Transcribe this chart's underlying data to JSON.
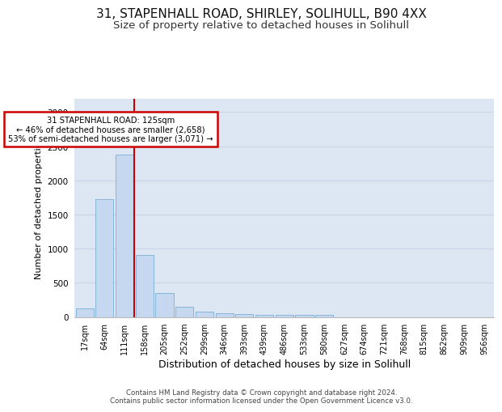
{
  "title1": "31, STAPENHALL ROAD, SHIRLEY, SOLIHULL, B90 4XX",
  "title2": "Size of property relative to detached houses in Solihull",
  "xlabel": "Distribution of detached houses by size in Solihull",
  "ylabel": "Number of detached properties",
  "categories": [
    "17sqm",
    "64sqm",
    "111sqm",
    "158sqm",
    "205sqm",
    "252sqm",
    "299sqm",
    "346sqm",
    "393sqm",
    "439sqm",
    "486sqm",
    "533sqm",
    "580sqm",
    "627sqm",
    "674sqm",
    "721sqm",
    "768sqm",
    "815sqm",
    "862sqm",
    "909sqm",
    "956sqm"
  ],
  "values": [
    130,
    1720,
    2380,
    910,
    350,
    150,
    80,
    55,
    45,
    30,
    30,
    28,
    35,
    0,
    0,
    0,
    0,
    0,
    0,
    0,
    0
  ],
  "bar_color": "#c5d8ef",
  "bar_edge_color": "#7aadd4",
  "red_line_x": 2.5,
  "annotation_text": "31 STAPENHALL ROAD: 125sqm\n← 46% of detached houses are smaller (2,658)\n53% of semi-detached houses are larger (3,071) →",
  "annotation_box_color": "#ffffff",
  "annotation_box_edge": "#cc0000",
  "ylim": [
    0,
    3200
  ],
  "yticks": [
    0,
    500,
    1000,
    1500,
    2000,
    2500,
    3000
  ],
  "grid_color": "#c8d4e8",
  "bg_color": "#dde6f3",
  "footer": "Contains HM Land Registry data © Crown copyright and database right 2024.\nContains public sector information licensed under the Open Government Licence v3.0.",
  "title1_fontsize": 11,
  "title2_fontsize": 9.5
}
